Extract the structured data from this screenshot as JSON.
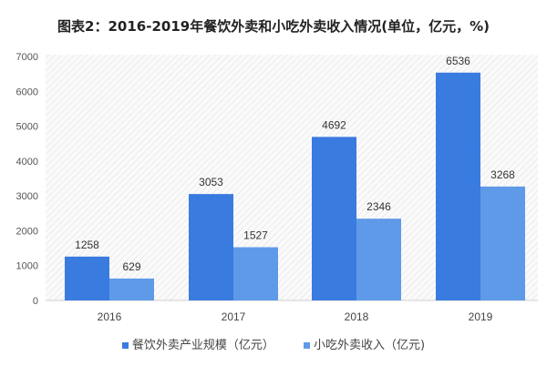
{
  "chart_data": {
    "type": "bar",
    "title": "图表2：2016-2019年餐饮外卖和小吃外卖收入情况(单位，亿元，%)",
    "categories": [
      "2016",
      "2017",
      "2018",
      "2019"
    ],
    "series": [
      {
        "name": "餐饮外卖产业规模（亿元）",
        "values": [
          1258,
          3053,
          4692,
          6536
        ],
        "color": "#3a7be0"
      },
      {
        "name": "小吃外卖收入（亿元)",
        "values": [
          629,
          1527,
          2346,
          3268
        ],
        "color": "#5f9ae8"
      }
    ],
    "ylim": [
      0,
      7000
    ],
    "yticks": [
      0,
      1000,
      2000,
      3000,
      4000,
      5000,
      6000,
      7000
    ],
    "xlabel": "",
    "ylabel": "",
    "legend": "bottom",
    "grid": false,
    "background": "diagonal-hatch"
  }
}
